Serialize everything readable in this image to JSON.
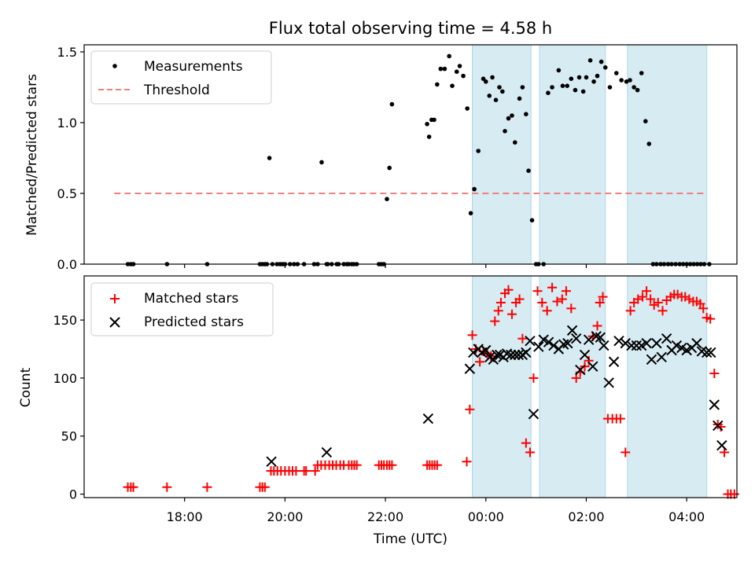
{
  "chart_data": [
    {
      "type": "scatter",
      "title": "Flux total observing time = 4.58 h",
      "xlabel": "",
      "ylabel": "Matched/Predicted stars",
      "xlim": [
        16.0,
        29.0
      ],
      "ylim": [
        0.0,
        1.55
      ],
      "yticks": [
        0.0,
        0.5,
        1.0,
        1.5
      ],
      "ytick_labels": [
        "0.0",
        "0.5",
        "1.0",
        "1.5"
      ],
      "shaded_regions": [
        [
          23.73,
          24.9
        ],
        [
          25.07,
          26.38
        ],
        [
          26.82,
          28.4
        ]
      ],
      "legend": [
        "Measurements",
        "Threshold"
      ],
      "series": [
        {
          "name": "Measurements",
          "x": [
            16.87,
            16.93,
            16.98,
            17.65,
            18.45,
            19.5,
            19.55,
            19.6,
            19.64,
            19.69,
            19.75,
            19.84,
            19.9,
            19.95,
            20.0,
            20.1,
            20.18,
            20.25,
            20.38,
            20.58,
            20.65,
            20.73,
            20.83,
            20.85,
            20.93,
            21.03,
            21.07,
            21.17,
            21.23,
            21.27,
            21.33,
            21.37,
            21.43,
            21.87,
            21.92,
            21.97,
            22.03,
            22.08,
            22.13,
            22.83,
            22.87,
            22.92,
            22.97,
            23.03,
            23.1,
            23.18,
            23.27,
            23.33,
            23.42,
            23.48,
            23.55,
            23.63,
            23.7,
            23.77,
            23.85,
            23.95,
            24.0,
            24.07,
            24.13,
            24.2,
            24.27,
            24.33,
            24.38,
            24.45,
            24.52,
            24.58,
            24.67,
            24.73,
            24.8,
            24.85,
            24.92,
            25.0,
            25.05,
            25.15,
            25.24,
            25.32,
            25.45,
            25.53,
            25.62,
            25.7,
            25.78,
            25.86,
            25.94,
            26.0,
            26.08,
            26.15,
            26.22,
            26.3,
            26.38,
            26.47,
            26.6,
            26.7,
            26.8,
            26.87,
            26.95,
            27.02,
            27.1,
            27.18,
            27.25,
            27.33,
            27.4,
            27.48,
            27.55,
            27.63,
            27.7,
            27.78,
            27.86,
            27.93,
            28.0,
            28.07,
            28.14,
            28.21,
            28.28,
            28.35,
            28.45
          ],
          "y": [
            0.0,
            0.0,
            0.0,
            0.0,
            0.0,
            0.0,
            0.0,
            0.0,
            0.0,
            0.75,
            0.0,
            0.0,
            0.0,
            0.0,
            0.0,
            0.0,
            0.0,
            0.0,
            0.0,
            0.0,
            0.0,
            0.72,
            0.0,
            0.0,
            0.0,
            0.0,
            0.0,
            0.0,
            0.0,
            0.0,
            0.0,
            0.0,
            0.0,
            0.0,
            0.0,
            0.0,
            0.46,
            0.68,
            1.13,
            0.99,
            0.9,
            1.02,
            1.02,
            1.27,
            1.38,
            1.38,
            1.47,
            1.26,
            1.36,
            1.4,
            1.33,
            1.1,
            0.36,
            0.53,
            0.8,
            1.31,
            1.29,
            1.19,
            1.32,
            1.16,
            1.25,
            1.22,
            0.94,
            1.03,
            1.05,
            0.86,
            1.17,
            1.25,
            1.06,
            0.66,
            0.31,
            0.0,
            0.0,
            0.0,
            1.21,
            1.25,
            1.37,
            1.26,
            1.26,
            1.31,
            1.23,
            1.32,
            1.22,
            1.32,
            1.44,
            1.29,
            1.33,
            1.43,
            1.39,
            1.25,
            1.35,
            1.3,
            1.29,
            1.3,
            1.25,
            1.23,
            1.35,
            1.01,
            0.85,
            0.0,
            0.0,
            0.0,
            0.0,
            0.0,
            0.0,
            0.0,
            0.0,
            0.0,
            0.0,
            0.0,
            0.0,
            0.0,
            0.0,
            0.0,
            0.0
          ]
        },
        {
          "name": "Threshold",
          "style": "dashed",
          "x": [
            16.6,
            28.4
          ],
          "y": [
            0.5,
            0.5
          ]
        }
      ]
    },
    {
      "type": "scatter",
      "title": "",
      "xlabel": "Time (UTC)",
      "ylabel": "Count",
      "xlim": [
        16.0,
        29.0
      ],
      "ylim": [
        -3.0,
        188.0
      ],
      "yticks": [
        0,
        50,
        100,
        150
      ],
      "ytick_labels": [
        "0",
        "50",
        "100",
        "150"
      ],
      "xticks": [
        18,
        20,
        22,
        24,
        26,
        28
      ],
      "xtick_labels": [
        "18:00",
        "20:00",
        "22:00",
        "00:00",
        "02:00",
        "04:00"
      ],
      "shaded_regions": [
        [
          23.73,
          24.9
        ],
        [
          25.07,
          26.38
        ],
        [
          26.82,
          28.4
        ]
      ],
      "legend": [
        "Matched stars",
        "Predicted stars"
      ],
      "series": [
        {
          "name": "Matched stars",
          "x": [
            16.87,
            16.93,
            16.98,
            17.65,
            18.45,
            19.5,
            19.55,
            19.6,
            19.72,
            19.78,
            19.85,
            19.92,
            20.0,
            20.08,
            20.15,
            20.22,
            20.38,
            20.42,
            20.6,
            20.65,
            20.72,
            20.8,
            20.88,
            20.95,
            21.02,
            21.1,
            21.17,
            21.27,
            21.33,
            21.38,
            21.43,
            21.87,
            21.92,
            21.97,
            22.03,
            22.08,
            22.13,
            22.83,
            22.88,
            22.93,
            22.98,
            23.03,
            23.62,
            23.68,
            23.73,
            23.8,
            23.88,
            23.95,
            24.03,
            24.1,
            24.18,
            24.25,
            24.3,
            24.38,
            24.45,
            24.52,
            24.6,
            24.67,
            24.73,
            24.8,
            24.88,
            24.95,
            25.03,
            25.12,
            25.22,
            25.32,
            25.42,
            25.52,
            25.6,
            25.7,
            25.8,
            25.88,
            25.97,
            26.05,
            26.13,
            26.22,
            26.27,
            26.33,
            26.43,
            26.52,
            26.6,
            26.68,
            26.78,
            26.88,
            26.95,
            27.03,
            27.12,
            27.2,
            27.28,
            27.35,
            27.43,
            27.52,
            27.6,
            27.68,
            27.75,
            27.82,
            27.9,
            27.97,
            28.05,
            28.13,
            28.2,
            28.27,
            28.33,
            28.4,
            28.47,
            28.55,
            28.62,
            28.68,
            28.75,
            28.82,
            28.88,
            28.95
          ],
          "y": [
            6,
            6,
            6,
            6,
            6,
            6,
            6,
            6,
            20,
            20,
            20,
            20,
            20,
            20,
            20,
            20,
            20,
            20,
            20,
            25,
            25,
            25,
            25,
            25,
            25,
            25,
            25,
            25,
            25,
            25,
            25,
            25,
            25,
            25,
            25,
            25,
            25,
            25,
            25,
            25,
            25,
            25,
            28,
            73,
            137,
            125,
            114,
            123,
            121,
            119,
            149,
            158,
            165,
            173,
            176,
            155,
            165,
            168,
            134,
            44,
            36,
            100,
            175,
            165,
            158,
            178,
            166,
            168,
            175,
            160,
            100,
            105,
            110,
            115,
            136,
            145,
            165,
            170,
            65,
            65,
            65,
            65,
            36,
            158,
            165,
            168,
            170,
            175,
            168,
            163,
            165,
            158,
            167,
            170,
            172,
            172,
            170,
            170,
            168,
            166,
            166,
            164,
            160,
            152,
            151,
            104,
            60,
            58,
            36,
            0,
            0,
            0
          ]
        },
        {
          "name": "Predicted stars",
          "x": [
            19.73,
            20.83,
            22.85,
            23.68,
            23.75,
            23.85,
            23.92,
            24.0,
            24.08,
            24.15,
            24.22,
            24.28,
            24.35,
            24.42,
            24.5,
            24.58,
            24.65,
            24.73,
            24.8,
            24.88,
            24.95,
            25.05,
            25.15,
            25.25,
            25.35,
            25.45,
            25.55,
            25.63,
            25.72,
            25.8,
            25.88,
            25.97,
            26.05,
            26.13,
            26.2,
            26.28,
            26.35,
            26.45,
            26.55,
            26.65,
            26.78,
            26.9,
            27.0,
            27.1,
            27.2,
            27.3,
            27.4,
            27.5,
            27.6,
            27.7,
            27.8,
            27.9,
            28.0,
            28.1,
            28.2,
            28.3,
            28.4,
            28.48,
            28.55,
            28.62,
            28.7
          ],
          "y": [
            28,
            36,
            65,
            108,
            122,
            125,
            122,
            124,
            118,
            116,
            120,
            120,
            118,
            121,
            120,
            120,
            120,
            120,
            122,
            132,
            69,
            127,
            133,
            131,
            128,
            125,
            129,
            130,
            141,
            134,
            107,
            120,
            133,
            110,
            136,
            135,
            128,
            96,
            114,
            132,
            130,
            128,
            128,
            128,
            130,
            116,
            130,
            118,
            134,
            124,
            128,
            126,
            124,
            126,
            130,
            123,
            122,
            122,
            77,
            59,
            42
          ]
        }
      ]
    }
  ]
}
